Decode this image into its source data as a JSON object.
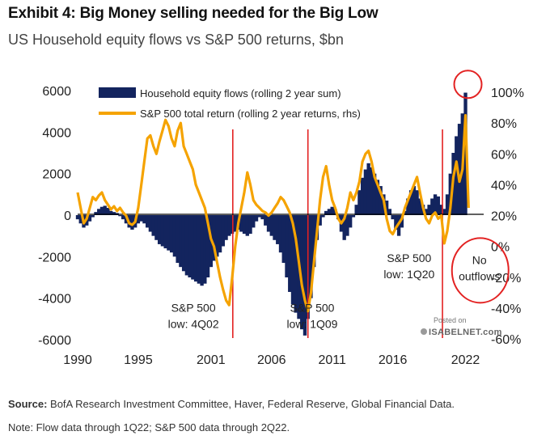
{
  "header": {
    "title": "Exhibit 4: Big Money selling needed for the Big Low",
    "subtitle": "US Household equity flows vs S&P 500 returns, $bn"
  },
  "footer": {
    "source_label": "Source:",
    "source_text": " BofA Research Investment Committee, Haver, Federal Reserve, Global Financial Data.",
    "note": "Note: Flow data through 1Q22; S&P 500 data through 2Q22."
  },
  "watermark": {
    "posted": "Posted on",
    "brand": "ISABELNET.com"
  },
  "colors": {
    "bars": "#13245e",
    "line": "#f5a300",
    "red": "#e32222",
    "axis": "#000000"
  },
  "chart_data": {
    "type": "bar+line",
    "title": "US Household equity flows vs S&P 500 returns, $bn",
    "xlim": [
      1990,
      2023.5
    ],
    "x_ticks": [
      1990,
      1995,
      2001,
      2006,
      2011,
      2016,
      2022
    ],
    "y_left": {
      "range": [
        -6000,
        6000
      ],
      "ticks": [
        6000,
        4000,
        2000,
        0,
        -2000,
        -4000,
        -6000
      ]
    },
    "y_right": {
      "range": [
        -60,
        100
      ],
      "ticks": [
        "100%",
        "80%",
        "60%",
        "40%",
        "20%",
        "0%",
        "-20%",
        "-40%",
        "-60%"
      ],
      "tick_values": [
        100,
        80,
        60,
        40,
        20,
        0,
        -20,
        -40,
        -60
      ]
    },
    "series": [
      {
        "name": "Household equity flows (rolling 2 year sum)",
        "type": "bar",
        "axis": "left",
        "points": [
          [
            1990.0,
            -200
          ],
          [
            1990.25,
            -400
          ],
          [
            1990.5,
            -600
          ],
          [
            1990.75,
            -500
          ],
          [
            1991.0,
            -300
          ],
          [
            1991.25,
            -100
          ],
          [
            1991.5,
            150
          ],
          [
            1991.75,
            300
          ],
          [
            1992.0,
            400
          ],
          [
            1992.25,
            450
          ],
          [
            1992.5,
            350
          ],
          [
            1992.75,
            200
          ],
          [
            1993.0,
            150
          ],
          [
            1993.25,
            100
          ],
          [
            1993.5,
            -50
          ],
          [
            1993.75,
            -200
          ],
          [
            1994.0,
            -400
          ],
          [
            1994.25,
            -600
          ],
          [
            1994.5,
            -700
          ],
          [
            1994.75,
            -600
          ],
          [
            1995.0,
            -400
          ],
          [
            1995.25,
            -300
          ],
          [
            1995.5,
            -400
          ],
          [
            1995.75,
            -600
          ],
          [
            1996.0,
            -800
          ],
          [
            1996.25,
            -1000
          ],
          [
            1996.5,
            -1200
          ],
          [
            1996.75,
            -1400
          ],
          [
            1997.0,
            -1500
          ],
          [
            1997.25,
            -1600
          ],
          [
            1997.5,
            -1700
          ],
          [
            1997.75,
            -1800
          ],
          [
            1998.0,
            -2000
          ],
          [
            1998.25,
            -2300
          ],
          [
            1998.5,
            -2500
          ],
          [
            1998.75,
            -2700
          ],
          [
            1999.0,
            -2900
          ],
          [
            1999.25,
            -3000
          ],
          [
            1999.5,
            -3100
          ],
          [
            1999.75,
            -3200
          ],
          [
            2000.0,
            -3300
          ],
          [
            2000.25,
            -3400
          ],
          [
            2000.5,
            -3300
          ],
          [
            2000.75,
            -3000
          ],
          [
            2001.0,
            -2500
          ],
          [
            2001.25,
            -2200
          ],
          [
            2001.5,
            -2000
          ],
          [
            2001.75,
            -1800
          ],
          [
            2002.0,
            -1500
          ],
          [
            2002.25,
            -1200
          ],
          [
            2002.5,
            -1000
          ],
          [
            2002.75,
            -900
          ],
          [
            2003.0,
            -800
          ],
          [
            2003.25,
            -700
          ],
          [
            2003.5,
            -800
          ],
          [
            2003.75,
            -900
          ],
          [
            2004.0,
            -1000
          ],
          [
            2004.25,
            -900
          ],
          [
            2004.5,
            -600
          ],
          [
            2004.75,
            -300
          ],
          [
            2005.0,
            -100
          ],
          [
            2005.25,
            -200
          ],
          [
            2005.5,
            -500
          ],
          [
            2005.75,
            -800
          ],
          [
            2006.0,
            -1000
          ],
          [
            2006.25,
            -1200
          ],
          [
            2006.5,
            -1400
          ],
          [
            2006.75,
            -1800
          ],
          [
            2007.0,
            -2300
          ],
          [
            2007.25,
            -3000
          ],
          [
            2007.5,
            -3700
          ],
          [
            2007.75,
            -4300
          ],
          [
            2008.0,
            -4700
          ],
          [
            2008.25,
            -5000
          ],
          [
            2008.5,
            -5500
          ],
          [
            2008.75,
            -5800
          ],
          [
            2009.0,
            -5000
          ],
          [
            2009.25,
            -4000
          ],
          [
            2009.5,
            -2500
          ],
          [
            2009.75,
            -1200
          ],
          [
            2010.0,
            -500
          ],
          [
            2010.25,
            -100
          ],
          [
            2010.5,
            200
          ],
          [
            2010.75,
            300
          ],
          [
            2011.0,
            400
          ],
          [
            2011.25,
            300
          ],
          [
            2011.5,
            -200
          ],
          [
            2011.75,
            -800
          ],
          [
            2012.0,
            -1200
          ],
          [
            2012.25,
            -1000
          ],
          [
            2012.5,
            -600
          ],
          [
            2012.75,
            -100
          ],
          [
            2013.0,
            500
          ],
          [
            2013.25,
            1200
          ],
          [
            2013.5,
            1800
          ],
          [
            2013.75,
            2200
          ],
          [
            2014.0,
            2500
          ],
          [
            2014.25,
            2300
          ],
          [
            2014.5,
            2000
          ],
          [
            2014.75,
            1700
          ],
          [
            2015.0,
            1400
          ],
          [
            2015.25,
            1000
          ],
          [
            2015.5,
            700
          ],
          [
            2015.75,
            300
          ],
          [
            2016.0,
            -200
          ],
          [
            2016.25,
            -700
          ],
          [
            2016.5,
            -1000
          ],
          [
            2016.75,
            -600
          ],
          [
            2017.0,
            200
          ],
          [
            2017.25,
            800
          ],
          [
            2017.5,
            1200
          ],
          [
            2017.75,
            1400
          ],
          [
            2018.0,
            1200
          ],
          [
            2018.25,
            800
          ],
          [
            2018.5,
            500
          ],
          [
            2018.75,
            300
          ],
          [
            2019.0,
            500
          ],
          [
            2019.25,
            800
          ],
          [
            2019.5,
            1000
          ],
          [
            2019.75,
            900
          ],
          [
            2020.0,
            500
          ],
          [
            2020.25,
            300
          ],
          [
            2020.5,
            1000
          ],
          [
            2020.75,
            2000
          ],
          [
            2021.0,
            3000
          ],
          [
            2021.25,
            3800
          ],
          [
            2021.5,
            4400
          ],
          [
            2021.75,
            4900
          ],
          [
            2022.0,
            5900
          ]
        ]
      },
      {
        "name": "S&P 500 total return (rolling 2 year returns, rhs)",
        "type": "line",
        "axis": "right",
        "points": [
          [
            1990.0,
            35
          ],
          [
            1990.25,
            25
          ],
          [
            1990.5,
            15
          ],
          [
            1990.75,
            18
          ],
          [
            1991.0,
            25
          ],
          [
            1991.25,
            32
          ],
          [
            1991.5,
            30
          ],
          [
            1991.75,
            33
          ],
          [
            1992.0,
            35
          ],
          [
            1992.25,
            30
          ],
          [
            1992.5,
            27
          ],
          [
            1992.75,
            24
          ],
          [
            1993.0,
            26
          ],
          [
            1993.25,
            23
          ],
          [
            1993.5,
            25
          ],
          [
            1993.75,
            22
          ],
          [
            1994.0,
            20
          ],
          [
            1994.25,
            15
          ],
          [
            1994.5,
            14
          ],
          [
            1994.75,
            16
          ],
          [
            1995.0,
            25
          ],
          [
            1995.25,
            40
          ],
          [
            1995.5,
            55
          ],
          [
            1995.75,
            70
          ],
          [
            1996.0,
            72
          ],
          [
            1996.25,
            65
          ],
          [
            1996.5,
            60
          ],
          [
            1996.75,
            68
          ],
          [
            1997.0,
            75
          ],
          [
            1997.25,
            82
          ],
          [
            1997.5,
            78
          ],
          [
            1997.75,
            70
          ],
          [
            1998.0,
            65
          ],
          [
            1998.25,
            75
          ],
          [
            1998.5,
            80
          ],
          [
            1998.75,
            65
          ],
          [
            1999.0,
            60
          ],
          [
            1999.25,
            55
          ],
          [
            1999.5,
            50
          ],
          [
            1999.75,
            40
          ],
          [
            2000.0,
            35
          ],
          [
            2000.25,
            30
          ],
          [
            2000.5,
            25
          ],
          [
            2000.75,
            15
          ],
          [
            2001.0,
            5
          ],
          [
            2001.25,
            0
          ],
          [
            2001.5,
            -10
          ],
          [
            2001.75,
            -20
          ],
          [
            2002.0,
            -28
          ],
          [
            2002.25,
            -35
          ],
          [
            2002.5,
            -38
          ],
          [
            2002.75,
            -20
          ],
          [
            2003.0,
            0
          ],
          [
            2003.25,
            15
          ],
          [
            2003.5,
            25
          ],
          [
            2003.75,
            35
          ],
          [
            2004.0,
            48
          ],
          [
            2004.25,
            40
          ],
          [
            2004.5,
            30
          ],
          [
            2004.75,
            27
          ],
          [
            2005.0,
            25
          ],
          [
            2005.25,
            23
          ],
          [
            2005.5,
            22
          ],
          [
            2005.75,
            20
          ],
          [
            2006.0,
            22
          ],
          [
            2006.25,
            25
          ],
          [
            2006.5,
            28
          ],
          [
            2006.75,
            32
          ],
          [
            2007.0,
            30
          ],
          [
            2007.25,
            26
          ],
          [
            2007.5,
            22
          ],
          [
            2007.75,
            15
          ],
          [
            2008.0,
            5
          ],
          [
            2008.25,
            -10
          ],
          [
            2008.5,
            -25
          ],
          [
            2008.75,
            -35
          ],
          [
            2009.0,
            -42
          ],
          [
            2009.25,
            -30
          ],
          [
            2009.5,
            -10
          ],
          [
            2009.75,
            10
          ],
          [
            2010.0,
            30
          ],
          [
            2010.25,
            45
          ],
          [
            2010.5,
            52
          ],
          [
            2010.75,
            40
          ],
          [
            2011.0,
            30
          ],
          [
            2011.25,
            25
          ],
          [
            2011.5,
            18
          ],
          [
            2011.75,
            15
          ],
          [
            2012.0,
            18
          ],
          [
            2012.25,
            25
          ],
          [
            2012.5,
            35
          ],
          [
            2012.75,
            30
          ],
          [
            2013.0,
            35
          ],
          [
            2013.25,
            42
          ],
          [
            2013.5,
            55
          ],
          [
            2013.75,
            60
          ],
          [
            2014.0,
            62
          ],
          [
            2014.25,
            55
          ],
          [
            2014.5,
            45
          ],
          [
            2014.75,
            40
          ],
          [
            2015.0,
            35
          ],
          [
            2015.25,
            30
          ],
          [
            2015.5,
            18
          ],
          [
            2015.75,
            10
          ],
          [
            2016.0,
            8
          ],
          [
            2016.25,
            12
          ],
          [
            2016.5,
            15
          ],
          [
            2016.75,
            18
          ],
          [
            2017.0,
            25
          ],
          [
            2017.25,
            30
          ],
          [
            2017.5,
            35
          ],
          [
            2017.75,
            40
          ],
          [
            2018.0,
            45
          ],
          [
            2018.25,
            35
          ],
          [
            2018.5,
            25
          ],
          [
            2018.75,
            18
          ],
          [
            2019.0,
            15
          ],
          [
            2019.25,
            20
          ],
          [
            2019.5,
            22
          ],
          [
            2019.75,
            18
          ],
          [
            2020.0,
            20
          ],
          [
            2020.25,
            2
          ],
          [
            2020.5,
            10
          ],
          [
            2020.75,
            25
          ],
          [
            2021.0,
            45
          ],
          [
            2021.25,
            55
          ],
          [
            2021.5,
            42
          ],
          [
            2021.75,
            50
          ],
          [
            2022.0,
            85
          ],
          [
            2022.25,
            25
          ]
        ]
      }
    ],
    "vlines": [
      2002.8,
      2009.0,
      2020.1
    ],
    "annotations": [
      {
        "text": [
          "S&P 500",
          "low: 4Q02"
        ],
        "x": 1999.55,
        "y": -4650
      },
      {
        "text": [
          "S&P 500",
          "low: 1Q09"
        ],
        "x": 2009.35,
        "y": -4650
      },
      {
        "text": [
          "S&P 500",
          "low: 1Q20"
        ],
        "x": 2017.35,
        "y": -2250
      },
      {
        "text": [
          "No",
          "outflows"
        ],
        "x": 2023.15,
        "y": -2350,
        "circle": true
      },
      {
        "peak_circle": true,
        "x": 2022.2,
        "y": 6300
      }
    ]
  }
}
